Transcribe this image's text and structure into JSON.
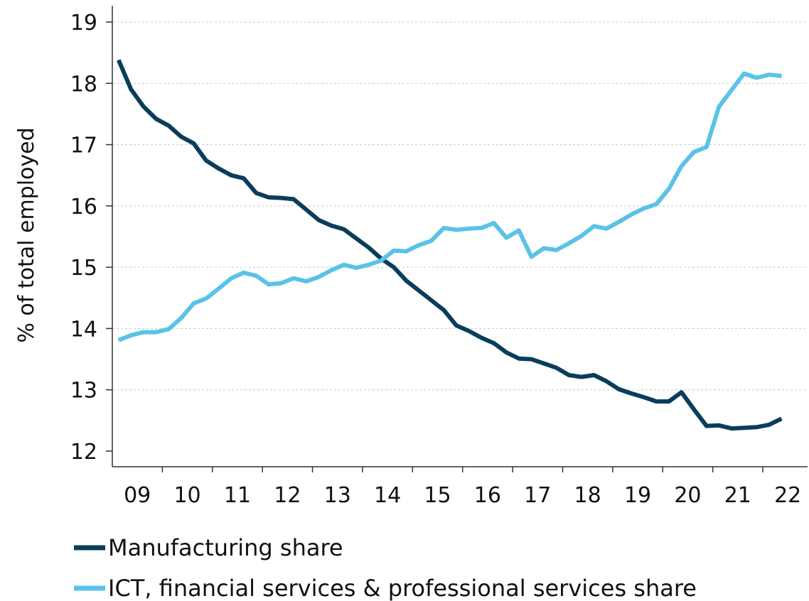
{
  "chart_data": {
    "type": "line",
    "title": "",
    "xlabel": "",
    "ylabel": "% of total employed",
    "ylim": [
      12,
      19
    ],
    "xlim": [
      2009,
      2023
    ],
    "yticks": [
      12,
      13,
      14,
      15,
      16,
      17,
      18,
      19
    ],
    "xtick_labels": [
      {
        "label": "09",
        "value": 2009.5
      },
      {
        "label": "10",
        "value": 2010.5
      },
      {
        "label": "11",
        "value": 2011.5
      },
      {
        "label": "12",
        "value": 2012.5
      },
      {
        "label": "13",
        "value": 2013.5
      },
      {
        "label": "14",
        "value": 2014.5
      },
      {
        "label": "15",
        "value": 2015.5
      },
      {
        "label": "16",
        "value": 2016.5
      },
      {
        "label": "17",
        "value": 2017.5
      },
      {
        "label": "18",
        "value": 2018.5
      },
      {
        "label": "19",
        "value": 2019.5
      },
      {
        "label": "20",
        "value": 2020.5
      },
      {
        "label": "21",
        "value": 2021.5
      },
      {
        "label": "22",
        "value": 2022.5
      }
    ],
    "grid": "horizontal-dashed",
    "legend_position": "bottom-left",
    "series": [
      {
        "name": "Manufacturing share",
        "color": "#0a3d5c",
        "points": [
          [
            2009.125,
            18.38
          ],
          [
            2009.375,
            17.9
          ],
          [
            2009.625,
            17.62
          ],
          [
            2009.875,
            17.42
          ],
          [
            2010.125,
            17.31
          ],
          [
            2010.375,
            17.13
          ],
          [
            2010.625,
            17.02
          ],
          [
            2010.875,
            16.74
          ],
          [
            2011.125,
            16.61
          ],
          [
            2011.375,
            16.5
          ],
          [
            2011.625,
            16.45
          ],
          [
            2011.875,
            16.21
          ],
          [
            2012.125,
            16.14
          ],
          [
            2012.375,
            16.13
          ],
          [
            2012.625,
            16.11
          ],
          [
            2012.875,
            15.94
          ],
          [
            2013.125,
            15.77
          ],
          [
            2013.375,
            15.68
          ],
          [
            2013.625,
            15.62
          ],
          [
            2013.875,
            15.47
          ],
          [
            2014.125,
            15.32
          ],
          [
            2014.375,
            15.14
          ],
          [
            2014.625,
            15.0
          ],
          [
            2014.875,
            14.78
          ],
          [
            2015.125,
            14.62
          ],
          [
            2015.375,
            14.46
          ],
          [
            2015.625,
            14.3
          ],
          [
            2015.875,
            14.05
          ],
          [
            2016.125,
            13.96
          ],
          [
            2016.375,
            13.85
          ],
          [
            2016.625,
            13.76
          ],
          [
            2016.875,
            13.61
          ],
          [
            2017.125,
            13.51
          ],
          [
            2017.375,
            13.5
          ],
          [
            2017.625,
            13.43
          ],
          [
            2017.875,
            13.36
          ],
          [
            2018.125,
            13.24
          ],
          [
            2018.375,
            13.21
          ],
          [
            2018.625,
            13.24
          ],
          [
            2018.875,
            13.14
          ],
          [
            2019.125,
            13.01
          ],
          [
            2019.375,
            12.94
          ],
          [
            2019.625,
            12.88
          ],
          [
            2019.875,
            12.81
          ],
          [
            2020.125,
            12.81
          ],
          [
            2020.375,
            12.96
          ],
          [
            2020.625,
            12.68
          ],
          [
            2020.875,
            12.41
          ],
          [
            2021.125,
            12.42
          ],
          [
            2021.375,
            12.37
          ],
          [
            2021.625,
            12.38
          ],
          [
            2021.875,
            12.39
          ],
          [
            2022.125,
            12.43
          ],
          [
            2022.375,
            12.53
          ]
        ]
      },
      {
        "name": "ICT, financial services & professional services share",
        "color": "#5bc2e7",
        "points": [
          [
            2009.125,
            13.81
          ],
          [
            2009.375,
            13.89
          ],
          [
            2009.625,
            13.94
          ],
          [
            2009.875,
            13.94
          ],
          [
            2010.125,
            13.99
          ],
          [
            2010.375,
            14.17
          ],
          [
            2010.625,
            14.41
          ],
          [
            2010.875,
            14.49
          ],
          [
            2011.125,
            14.65
          ],
          [
            2011.375,
            14.82
          ],
          [
            2011.625,
            14.91
          ],
          [
            2011.875,
            14.86
          ],
          [
            2012.125,
            14.72
          ],
          [
            2012.375,
            14.74
          ],
          [
            2012.625,
            14.82
          ],
          [
            2012.875,
            14.77
          ],
          [
            2013.125,
            14.84
          ],
          [
            2013.375,
            14.95
          ],
          [
            2013.625,
            15.04
          ],
          [
            2013.875,
            14.99
          ],
          [
            2014.125,
            15.04
          ],
          [
            2014.375,
            15.11
          ],
          [
            2014.625,
            15.27
          ],
          [
            2014.875,
            15.26
          ],
          [
            2015.125,
            15.36
          ],
          [
            2015.375,
            15.43
          ],
          [
            2015.625,
            15.64
          ],
          [
            2015.875,
            15.61
          ],
          [
            2016.125,
            15.63
          ],
          [
            2016.375,
            15.64
          ],
          [
            2016.625,
            15.72
          ],
          [
            2016.875,
            15.48
          ],
          [
            2017.125,
            15.6
          ],
          [
            2017.375,
            15.17
          ],
          [
            2017.625,
            15.31
          ],
          [
            2017.875,
            15.28
          ],
          [
            2018.125,
            15.39
          ],
          [
            2018.375,
            15.51
          ],
          [
            2018.625,
            15.67
          ],
          [
            2018.875,
            15.63
          ],
          [
            2019.125,
            15.74
          ],
          [
            2019.375,
            15.86
          ],
          [
            2019.625,
            15.96
          ],
          [
            2019.875,
            16.03
          ],
          [
            2020.125,
            16.28
          ],
          [
            2020.375,
            16.65
          ],
          [
            2020.625,
            16.88
          ],
          [
            2020.875,
            16.96
          ],
          [
            2021.125,
            17.62
          ],
          [
            2021.375,
            17.89
          ],
          [
            2021.625,
            18.16
          ],
          [
            2021.875,
            18.09
          ],
          [
            2022.125,
            18.14
          ],
          [
            2022.375,
            18.12
          ]
        ]
      }
    ]
  }
}
